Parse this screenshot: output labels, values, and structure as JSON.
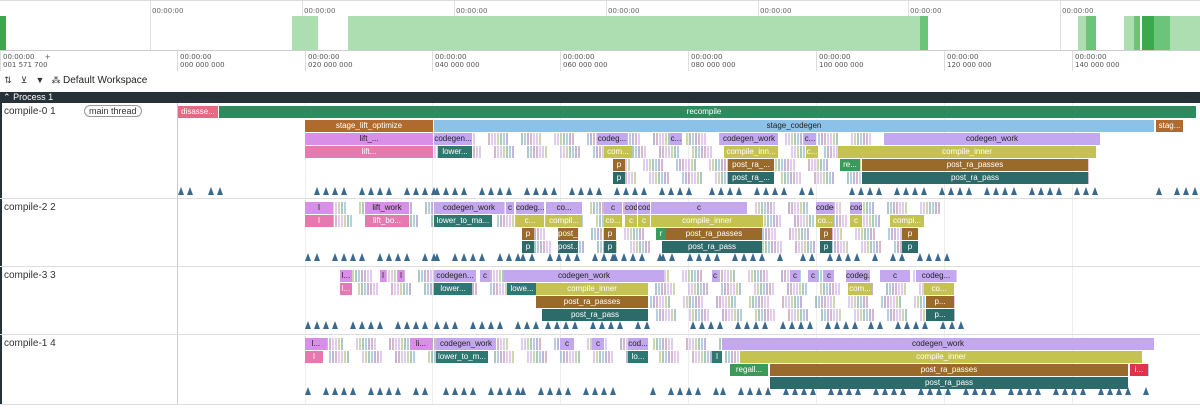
{
  "overview": {
    "labels": [
      "00:00:00",
      "00:00:00",
      "00:00:00",
      "00:00:00",
      "00:00:00",
      "00:00:00",
      "00:00:00",
      "00:00:00"
    ]
  },
  "ruler": {
    "labels": [
      {
        "t": "00:00:00",
        "v": "001 571 700"
      },
      {
        "t": "00:00:00",
        "v": "000 000 000"
      },
      {
        "t": "00:00:00",
        "v": "020 000 000"
      },
      {
        "t": "00:00:00",
        "v": "040 000 000"
      },
      {
        "t": "00:00:00",
        "v": "060 000 000"
      },
      {
        "t": "00:00:00",
        "v": "080 000 000"
      },
      {
        "t": "00:00:00",
        "v": "100 000 000"
      },
      {
        "t": "00:00:00",
        "v": "120 000 000"
      },
      {
        "t": "00:00:00",
        "v": "140 000 000"
      }
    ],
    "plus": "+"
  },
  "toolbar": {
    "workspace_label": "Default Workspace"
  },
  "process": {
    "title": "Process 1"
  },
  "tracks": [
    {
      "name": "compile-0 1",
      "tag": "main thread",
      "rows": [
        [
          {
            "l": "disasse...",
            "c": "#e26a82"
          },
          {
            "l": "recompile",
            "c": "#2f8a5e"
          },
          {
            "l": "",
            "c": "#2f8a5e"
          }
        ],
        [
          {
            "l": "stage_lift_optimize",
            "c": "#b06a2e"
          },
          {
            "l": "stage_codegen",
            "c": "#8dc2e8"
          },
          {
            "l": "stag...",
            "c": "#b06a2e"
          }
        ],
        [
          {
            "l": "lift_...",
            "c": "#d98ee8"
          },
          {
            "l": "codegen...",
            "c": "#c3a8f0"
          },
          {
            "l": "codeg...",
            "c": "#c3a8f0"
          },
          {
            "l": "c...",
            "c": "#c3a8f0"
          },
          {
            "l": "codegen_work",
            "c": "#c3a8f0"
          },
          {
            "l": "c...",
            "c": "#c3a8f0"
          },
          {
            "l": "codegen_work",
            "c": "#c3a8f0"
          }
        ],
        [
          {
            "l": "lift...",
            "c": "#e57ab0"
          },
          {
            "l": "lower...",
            "c": "#2d7870"
          },
          {
            "l": "com...",
            "c": "#c4c352"
          },
          {
            "l": "compile_inn...",
            "c": "#c4c352"
          },
          {
            "l": "c...",
            "c": "#c4c352"
          },
          {
            "l": "compile_inner",
            "c": "#c4c352"
          }
        ],
        [
          {
            "l": "p",
            "c": "#9a6a2a"
          },
          {
            "l": "post_ra_...",
            "c": "#9a6a2a"
          },
          {
            "l": "re...",
            "c": "#3a9a5a"
          },
          {
            "l": "post_ra_passes",
            "c": "#9a6a2a"
          }
        ],
        [
          {
            "l": "p",
            "c": "#2d6a6a"
          },
          {
            "l": "post_ra_...",
            "c": "#2d6a6a"
          },
          {
            "l": "post_ra_pass",
            "c": "#2d6a6a"
          }
        ]
      ]
    },
    {
      "name": "compile-2 2",
      "tag": "",
      "rows": [
        [
          {
            "l": "l",
            "c": "#d98ee8"
          },
          {
            "l": "lift_work",
            "c": "#d98ee8"
          },
          {
            "l": "codegen_work",
            "c": "#c3a8f0"
          },
          {
            "l": "c",
            "c": "#c3a8f0"
          },
          {
            "l": "codeg...",
            "c": "#c3a8f0"
          },
          {
            "l": "co...",
            "c": "#c3a8f0"
          },
          {
            "l": "c",
            "c": "#c3a8f0"
          },
          {
            "l": "codegen_work",
            "c": "#c3a8f0"
          },
          {
            "l": "codeg...",
            "c": "#c3a8f0"
          },
          {
            "l": "c",
            "c": "#c3a8f0"
          },
          {
            "l": "codeg...",
            "c": "#c3a8f0"
          },
          {
            "l": "codeg...",
            "c": "#c3a8f0"
          }
        ],
        [
          {
            "l": "l",
            "c": "#e57ab0"
          },
          {
            "l": "lift_bo...",
            "c": "#e57ab0"
          },
          {
            "l": "lower_to_ma...",
            "c": "#2d7870"
          },
          {
            "l": "c...",
            "c": "#c4c352"
          },
          {
            "l": "compil...",
            "c": "#c4c352"
          },
          {
            "l": "co...",
            "c": "#c4c352"
          },
          {
            "l": "c",
            "c": "#c4c352"
          },
          {
            "l": "c",
            "c": "#c4c352"
          },
          {
            "l": "compile_inner",
            "c": "#c4c352"
          },
          {
            "l": "co...",
            "c": "#c4c352"
          },
          {
            "l": "c",
            "c": "#c4c352"
          },
          {
            "l": "compi...",
            "c": "#c4c352"
          }
        ],
        [
          {
            "l": "p",
            "c": "#9a6a2a"
          },
          {
            "l": "post_...",
            "c": "#9a6a2a"
          },
          {
            "l": "p",
            "c": "#9a6a2a"
          },
          {
            "l": "r",
            "c": "#3a9a5a"
          },
          {
            "l": "post_ra_passes",
            "c": "#9a6a2a"
          },
          {
            "l": "p",
            "c": "#9a6a2a"
          },
          {
            "l": "p",
            "c": "#9a6a2a"
          }
        ],
        [
          {
            "l": "p",
            "c": "#2d6a6a"
          },
          {
            "l": "post...",
            "c": "#2d6a6a"
          },
          {
            "l": "p",
            "c": "#2d6a6a"
          },
          {
            "l": "post_ra_pass",
            "c": "#2d6a6a"
          },
          {
            "l": "p",
            "c": "#2d6a6a"
          },
          {
            "l": "p",
            "c": "#2d6a6a"
          }
        ]
      ]
    },
    {
      "name": "compile-3 3",
      "tag": "",
      "rows": [
        [
          {
            "l": "l...",
            "c": "#d98ee8"
          },
          {
            "l": "l",
            "c": "#d98ee8"
          },
          {
            "l": "l",
            "c": "#d98ee8"
          },
          {
            "l": "codegen...",
            "c": "#c3a8f0"
          },
          {
            "l": "c",
            "c": "#c3a8f0"
          },
          {
            "l": "codegen_work",
            "c": "#c3a8f0"
          },
          {
            "l": "c",
            "c": "#c3a8f0"
          },
          {
            "l": "c",
            "c": "#c3a8f0"
          },
          {
            "l": "c",
            "c": "#c3a8f0"
          },
          {
            "l": "c",
            "c": "#c3a8f0"
          },
          {
            "l": "codeg...",
            "c": "#c3a8f0"
          },
          {
            "l": "c",
            "c": "#c3a8f0"
          },
          {
            "l": "codeg...",
            "c": "#c3a8f0"
          }
        ],
        [
          {
            "l": "l...",
            "c": "#e57ab0"
          },
          {
            "l": "lower...",
            "c": "#2d7870"
          },
          {
            "l": "lowe...",
            "c": "#2d7870"
          },
          {
            "l": "compile_inner",
            "c": "#c4c352"
          },
          {
            "l": "com...",
            "c": "#c4c352"
          },
          {
            "l": "co...",
            "c": "#c4c352"
          }
        ],
        [
          {
            "l": "post_ra_passes",
            "c": "#9a6a2a"
          },
          {
            "l": "p...",
            "c": "#9a6a2a"
          },
          {
            "l": "pos...",
            "c": "#9a6a2a"
          }
        ],
        [
          {
            "l": "post_ra_pass",
            "c": "#2d6a6a"
          },
          {
            "l": "p...",
            "c": "#2d6a6a"
          },
          {
            "l": "pos...",
            "c": "#2d6a6a"
          }
        ]
      ]
    },
    {
      "name": "compile-1 4",
      "tag": "",
      "rows": [
        [
          {
            "l": "l...",
            "c": "#d98ee8"
          },
          {
            "l": "li...",
            "c": "#d98ee8"
          },
          {
            "l": "codegen_work",
            "c": "#c3a8f0"
          },
          {
            "l": "c",
            "c": "#c3a8f0"
          },
          {
            "l": "c",
            "c": "#c3a8f0"
          },
          {
            "l": "cod...",
            "c": "#c3a8f0"
          },
          {
            "l": "codegen_work",
            "c": "#c3a8f0"
          }
        ],
        [
          {
            "l": "l",
            "c": "#e57ab0"
          },
          {
            "l": "lower_to_m...",
            "c": "#2d7870"
          },
          {
            "l": "lo...",
            "c": "#2d7870"
          },
          {
            "l": "l",
            "c": "#2d7870"
          },
          {
            "l": "compile_inner",
            "c": "#c4c352"
          }
        ],
        [
          {
            "l": "regall...",
            "c": "#3a9a5a"
          },
          {
            "l": "post_ra_passes",
            "c": "#9a6a2a"
          },
          {
            "l": "i...",
            "c": "#e0344a"
          }
        ],
        [
          {
            "l": "post_ra_pass",
            "c": "#2d6a6a"
          }
        ]
      ]
    }
  ]
}
